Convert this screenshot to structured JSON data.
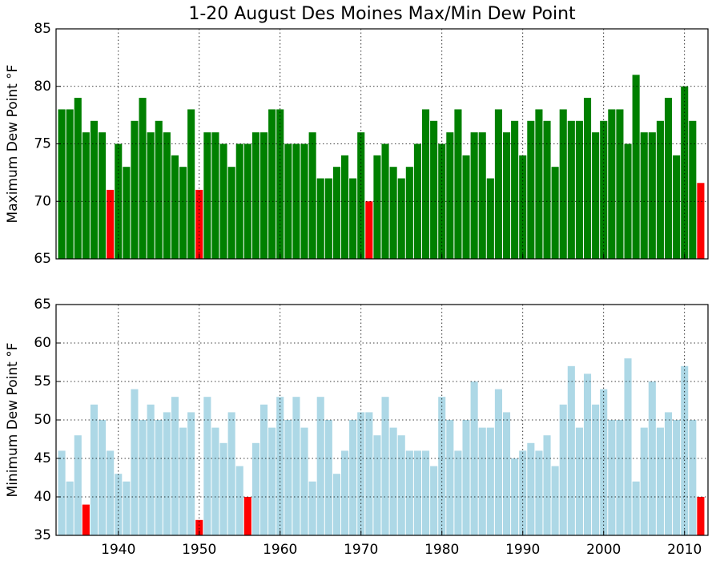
{
  "chart_data": [
    {
      "type": "bar",
      "title": "1-20 August Des Moines Max/Min Dew Point",
      "ylabel": "Maximum Dew Point °F",
      "x": [
        1933,
        1934,
        1935,
        1936,
        1937,
        1938,
        1939,
        1940,
        1941,
        1942,
        1943,
        1944,
        1945,
        1946,
        1947,
        1948,
        1949,
        1950,
        1951,
        1952,
        1953,
        1954,
        1955,
        1956,
        1957,
        1958,
        1959,
        1960,
        1961,
        1962,
        1963,
        1964,
        1965,
        1966,
        1967,
        1968,
        1969,
        1970,
        1971,
        1972,
        1973,
        1974,
        1975,
        1976,
        1977,
        1978,
        1979,
        1980,
        1981,
        1982,
        1983,
        1984,
        1985,
        1986,
        1987,
        1988,
        1989,
        1990,
        1991,
        1992,
        1993,
        1994,
        1995,
        1996,
        1997,
        1998,
        1999,
        2000,
        2001,
        2002,
        2003,
        2004,
        2005,
        2006,
        2007,
        2008,
        2009,
        2010,
        2011,
        2012
      ],
      "values": [
        78,
        78,
        79,
        76,
        77,
        76,
        71,
        75,
        73,
        77,
        79,
        76,
        77,
        76,
        74,
        73,
        78,
        71,
        76,
        76,
        75,
        73,
        75,
        75,
        76,
        76,
        78,
        78,
        75,
        75,
        75,
        76,
        72,
        72,
        73,
        74,
        72,
        76,
        70,
        74,
        75,
        73,
        72,
        73,
        75,
        78,
        77,
        75,
        76,
        78,
        74,
        76,
        76,
        72,
        78,
        76,
        77,
        74,
        77,
        78,
        77,
        73,
        78,
        77,
        77,
        79,
        76,
        77,
        78,
        78,
        75,
        81,
        76,
        76,
        77,
        79,
        74,
        80,
        77,
        71.6
      ],
      "color": "#008000",
      "highlight_color": "#ff0000",
      "highlight": [
        1939,
        1950,
        1971,
        2012
      ],
      "xlim": [
        1932.3,
        2012.9
      ],
      "xticks": [
        1940,
        1950,
        1960,
        1970,
        1980,
        1990,
        2000,
        2010
      ],
      "xtick_labels": false,
      "ylim": [
        65,
        85
      ],
      "yticks": [
        65,
        70,
        75,
        80,
        85
      ],
      "grid": true
    },
    {
      "type": "bar",
      "ylabel": "Minimum Dew Point °F",
      "x": [
        1933,
        1934,
        1935,
        1936,
        1937,
        1938,
        1939,
        1940,
        1941,
        1942,
        1943,
        1944,
        1945,
        1946,
        1947,
        1948,
        1949,
        1950,
        1951,
        1952,
        1953,
        1954,
        1955,
        1956,
        1957,
        1958,
        1959,
        1960,
        1961,
        1962,
        1963,
        1964,
        1965,
        1966,
        1967,
        1968,
        1969,
        1970,
        1971,
        1972,
        1973,
        1974,
        1975,
        1976,
        1977,
        1978,
        1979,
        1980,
        1981,
        1982,
        1983,
        1984,
        1985,
        1986,
        1987,
        1988,
        1989,
        1990,
        1991,
        1992,
        1993,
        1994,
        1995,
        1996,
        1997,
        1998,
        1999,
        2000,
        2001,
        2002,
        2003,
        2004,
        2005,
        2006,
        2007,
        2008,
        2009,
        2010,
        2011,
        2012
      ],
      "values": [
        46,
        42,
        48,
        39,
        52,
        50,
        46,
        43,
        42,
        54,
        50,
        52,
        50,
        51,
        53,
        49,
        51,
        37,
        53,
        49,
        47,
        51,
        44,
        40,
        47,
        52,
        49,
        53,
        50,
        53,
        49,
        42,
        53,
        50,
        43,
        46,
        50,
        51,
        51,
        48,
        53,
        49,
        48,
        46,
        46,
        46,
        44,
        53,
        50,
        46,
        50,
        55,
        49,
        49,
        54,
        51,
        45,
        46,
        47,
        46,
        48,
        44,
        52,
        57,
        49,
        56,
        52,
        54,
        50,
        50,
        58,
        42,
        49,
        55,
        49,
        51,
        50,
        57,
        50,
        40
      ],
      "color": "#add8e6",
      "highlight_color": "#ff0000",
      "highlight": [
        1936,
        1950,
        1956,
        2012
      ],
      "xlim": [
        1932.3,
        2012.9
      ],
      "xticks": [
        1940,
        1950,
        1960,
        1970,
        1980,
        1990,
        2000,
        2010
      ],
      "xtick_labels": true,
      "ylim": [
        35,
        65
      ],
      "yticks": [
        35,
        40,
        45,
        50,
        55,
        60,
        65
      ],
      "grid": true
    }
  ]
}
